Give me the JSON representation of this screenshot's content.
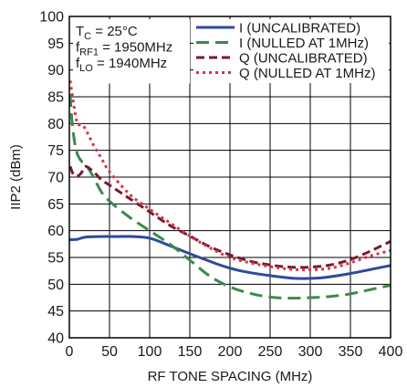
{
  "chart_data": {
    "type": "line",
    "title": "",
    "xlabel": "RF TONE SPACING (MHz)",
    "ylabel": "IIP2 (dBm)",
    "xlim": [
      0,
      400
    ],
    "ylim": [
      40,
      100
    ],
    "xticks": [
      0,
      50,
      100,
      150,
      200,
      250,
      300,
      350,
      400
    ],
    "yticks": [
      40,
      45,
      50,
      55,
      60,
      65,
      70,
      75,
      80,
      85,
      90,
      95,
      100
    ],
    "grid": true,
    "legend_position": "top-right",
    "annotations": [
      {
        "main": "T",
        "sub": "C",
        "rest": " = 25°C"
      },
      {
        "main": "f",
        "sub": "RF1",
        "rest": " = 1950MHz"
      },
      {
        "main": "f",
        "sub": "LO",
        "rest": " = 1940MHz"
      }
    ],
    "series": [
      {
        "name": "I (UNCALIBRATED)",
        "color": "#2f4a9a",
        "dash": "solid",
        "x": [
          0,
          10,
          20,
          40,
          60,
          80,
          100,
          120,
          150,
          180,
          200,
          220,
          250,
          280,
          300,
          320,
          350,
          380,
          400
        ],
        "y": [
          58.3,
          58.4,
          58.8,
          58.9,
          58.9,
          58.9,
          58.6,
          57.5,
          55.7,
          54.0,
          53.0,
          52.3,
          51.6,
          51.1,
          51.1,
          51.3,
          52.0,
          52.9,
          53.5
        ]
      },
      {
        "name": "I (NULLED AT 1MHz)",
        "color": "#3a8a4e",
        "dash": "long-dash",
        "x": [
          1,
          3,
          6,
          10,
          15,
          20,
          30,
          40,
          50,
          75,
          100,
          125,
          150,
          175,
          200,
          225,
          250,
          275,
          300,
          325,
          350,
          375,
          400
        ],
        "y": [
          85.5,
          81.0,
          77.0,
          74.3,
          73.0,
          72.5,
          70.0,
          67.2,
          65.5,
          62.5,
          60.0,
          57.5,
          54.5,
          51.5,
          49.5,
          48.3,
          47.6,
          47.4,
          47.5,
          47.7,
          48.2,
          49.0,
          49.8
        ]
      },
      {
        "name": "Q (UNCALIBRATED)",
        "color": "#7a1a2c",
        "dash": "dash",
        "x": [
          1,
          5,
          10,
          15,
          20,
          30,
          40,
          50,
          75,
          100,
          125,
          150,
          175,
          200,
          225,
          250,
          275,
          300,
          325,
          350,
          375,
          400
        ],
        "y": [
          72.0,
          70.5,
          70.2,
          70.8,
          72.0,
          71.0,
          69.5,
          68.5,
          66.0,
          63.5,
          61.0,
          59.0,
          57.0,
          55.5,
          54.3,
          53.6,
          53.2,
          53.2,
          53.6,
          54.6,
          56.2,
          58.0
        ]
      },
      {
        "name": "Q (NULLED AT 1MHz)",
        "color": "#d8324c",
        "dash": "dot",
        "x": [
          1,
          3,
          6,
          10,
          15,
          20,
          30,
          40,
          50,
          75,
          100,
          125,
          150,
          175,
          200,
          225,
          250,
          275,
          300,
          325,
          350,
          375,
          400
        ],
        "y": [
          88.0,
          86.0,
          83.0,
          80.0,
          79.8,
          79.0,
          76.0,
          73.5,
          71.0,
          66.8,
          64.0,
          61.5,
          59.0,
          56.8,
          55.0,
          54.0,
          53.3,
          52.8,
          52.7,
          53.0,
          54.0,
          55.3,
          56.3
        ]
      }
    ]
  }
}
